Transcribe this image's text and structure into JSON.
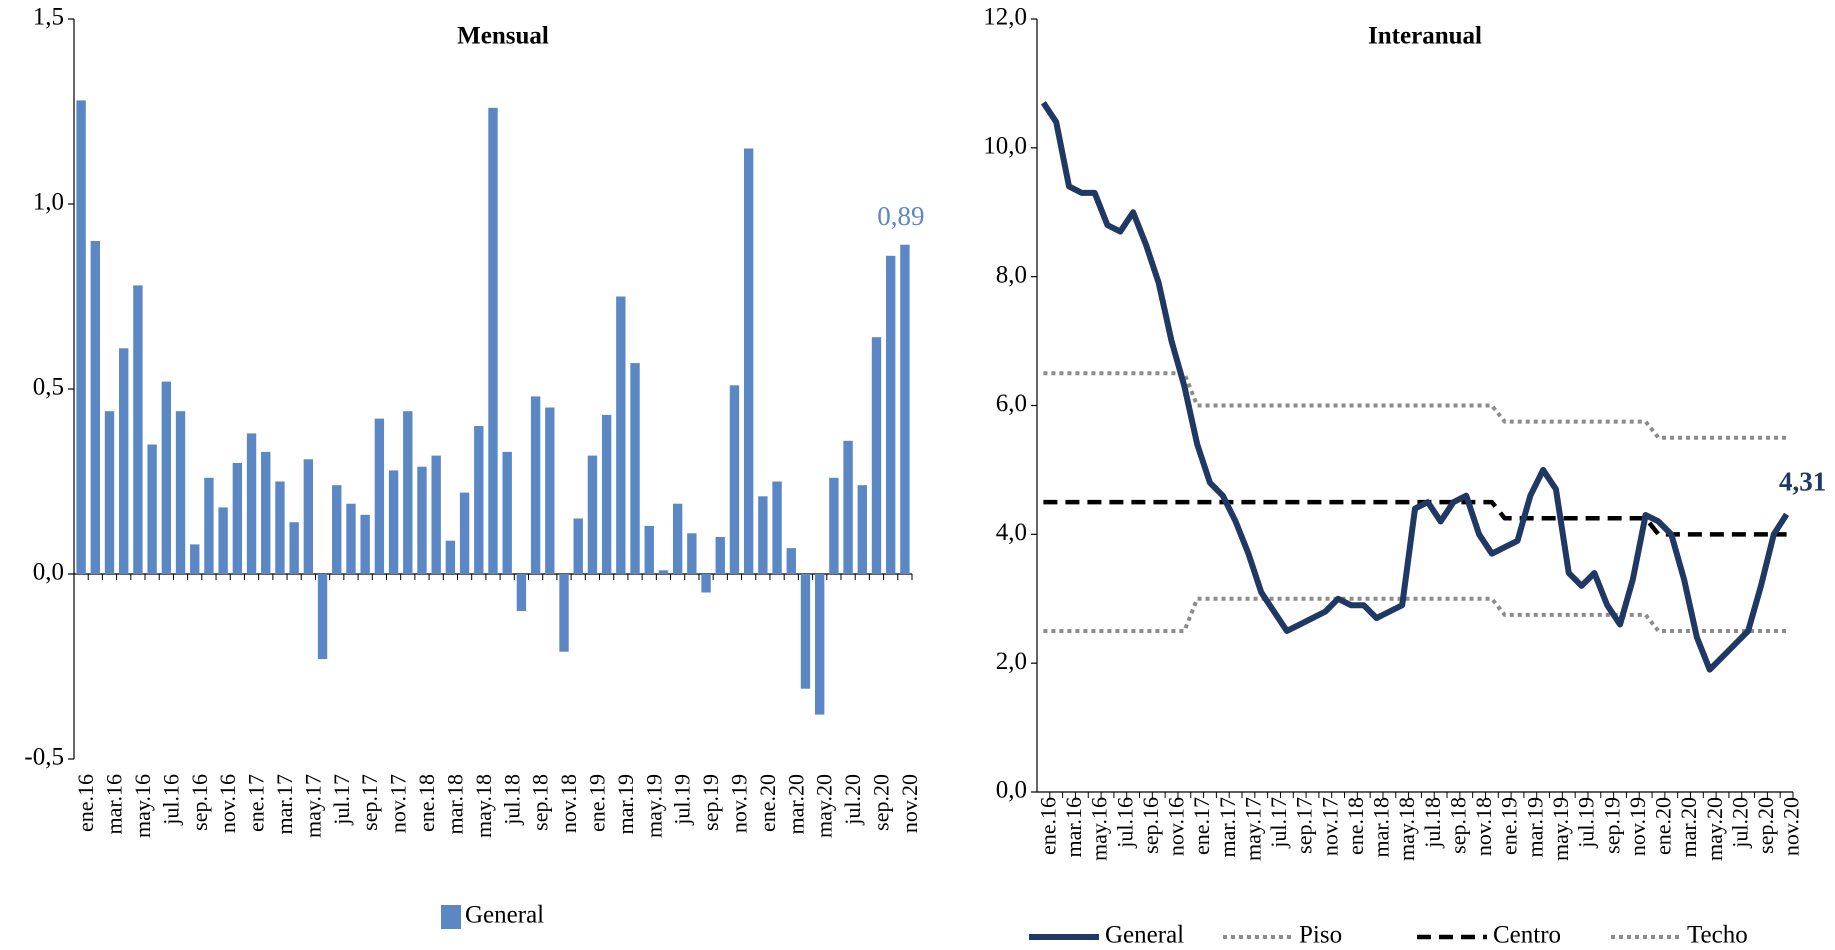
{
  "chart_data": [
    {
      "type": "bar",
      "title": "Mensual",
      "categories": [
        "ene.16",
        null,
        "mar.16",
        null,
        "may.16",
        null,
        "jul.16",
        null,
        "sep.16",
        null,
        "nov.16",
        null,
        "ene.17",
        null,
        "mar.17",
        null,
        "may.17",
        null,
        "jul.17",
        null,
        "sep.17",
        null,
        "nov.17",
        null,
        "ene.18",
        null,
        "mar.18",
        null,
        "may.18",
        null,
        "jul.18",
        null,
        "sep.18",
        null,
        "nov.18",
        null,
        "ene.19",
        null,
        "mar.19",
        null,
        "may.19",
        null,
        "jul.19",
        null,
        "sep.19",
        null,
        "nov.19",
        null,
        "ene.20",
        null,
        "mar.20",
        null,
        "may.20",
        null,
        "jul.20",
        null,
        "sep.20",
        null,
        "nov.20"
      ],
      "series": [
        {
          "name": "General",
          "color": "#5b87c5",
          "values": [
            1.28,
            0.9,
            0.44,
            0.61,
            0.78,
            0.35,
            0.52,
            0.44,
            0.08,
            0.26,
            0.18,
            0.3,
            0.38,
            0.33,
            0.25,
            0.14,
            0.31,
            -0.23,
            0.24,
            0.19,
            0.16,
            0.42,
            0.28,
            0.44,
            0.29,
            0.32,
            0.09,
            0.22,
            0.4,
            1.26,
            0.33,
            -0.1,
            0.48,
            0.45,
            -0.21,
            0.15,
            0.32,
            0.43,
            0.75,
            0.57,
            0.13,
            0.01,
            0.19,
            0.11,
            -0.05,
            0.1,
            0.51,
            1.15,
            0.21,
            0.25,
            0.07,
            -0.31,
            -0.38,
            0.26,
            0.36,
            0.24,
            0.64,
            0.86,
            0.89
          ],
          "value_labels": [
            null,
            null,
            null,
            null,
            null,
            null,
            null,
            null,
            null,
            null,
            null,
            null,
            null,
            null,
            null,
            null,
            null,
            null,
            null,
            null,
            null,
            null,
            null,
            null,
            null,
            null,
            null,
            null,
            null,
            null,
            null,
            null,
            null,
            null,
            null,
            null,
            null,
            null,
            null,
            null,
            null,
            null,
            null,
            null,
            null,
            null,
            null,
            null,
            null,
            null,
            null,
            null,
            null,
            null,
            null,
            null,
            null,
            null,
            "0,89"
          ]
        }
      ],
      "ylim": [
        -0.5,
        1.5
      ],
      "yticks": [
        {
          "value": -0.5,
          "label": "-0,5"
        },
        {
          "value": 0,
          "label": "0,0"
        },
        {
          "value": 0.5,
          "label": "0,5"
        },
        {
          "value": 1,
          "label": "1,0"
        },
        {
          "value": 1.5,
          "label": "1,5"
        }
      ]
    },
    {
      "type": "line",
      "title": "Interanual",
      "categories": [
        "ene.16",
        null,
        "mar.16",
        null,
        "may.16",
        null,
        "jul.16",
        null,
        "sep.16",
        null,
        "nov.16",
        null,
        "ene.17",
        null,
        "mar.17",
        null,
        "may.17",
        null,
        "jul.17",
        null,
        "sep.17",
        null,
        "nov.17",
        null,
        "ene.18",
        null,
        "mar.18",
        null,
        "may.18",
        null,
        "jul.18",
        null,
        "sep.18",
        null,
        "nov.18",
        null,
        "ene.19",
        null,
        "mar.19",
        null,
        "may.19",
        null,
        "jul.19",
        null,
        "sep.19",
        null,
        "nov.19",
        null,
        "ene.20",
        null,
        "mar.20",
        null,
        "may.20",
        null,
        "jul.20",
        null,
        "sep.20",
        null,
        "nov.20"
      ],
      "series": [
        {
          "name": "General",
          "color": "#1f3864",
          "style": "solid",
          "values": [
            10.7,
            10.4,
            9.4,
            9.3,
            9.3,
            8.8,
            8.7,
            9.0,
            8.5,
            7.9,
            7.0,
            6.3,
            5.4,
            4.8,
            4.6,
            4.2,
            3.7,
            3.1,
            2.8,
            2.5,
            2.6,
            2.7,
            2.8,
            3.0,
            2.9,
            2.9,
            2.7,
            2.8,
            2.9,
            4.4,
            4.5,
            4.2,
            4.5,
            4.6,
            4.0,
            3.7,
            3.8,
            3.9,
            4.6,
            5.0,
            4.7,
            3.4,
            3.2,
            3.4,
            2.9,
            2.6,
            3.3,
            4.3,
            4.2,
            4.0,
            3.3,
            2.4,
            1.9,
            2.1,
            2.3,
            2.5,
            3.2,
            4.0,
            4.31
          ],
          "value_labels": [
            null,
            null,
            null,
            null,
            null,
            null,
            null,
            null,
            null,
            null,
            null,
            null,
            null,
            null,
            null,
            null,
            null,
            null,
            null,
            null,
            null,
            null,
            null,
            null,
            null,
            null,
            null,
            null,
            null,
            null,
            null,
            null,
            null,
            null,
            null,
            null,
            null,
            null,
            null,
            null,
            null,
            null,
            null,
            null,
            null,
            null,
            null,
            null,
            null,
            null,
            null,
            null,
            null,
            null,
            null,
            null,
            null,
            null,
            "4,31"
          ]
        },
        {
          "name": "Piso",
          "color": "#8c8c8c",
          "style": "dotted",
          "values": [
            2.5,
            2.5,
            2.5,
            2.5,
            2.5,
            2.5,
            2.5,
            2.5,
            2.5,
            2.5,
            2.5,
            2.5,
            3.0,
            3.0,
            3.0,
            3.0,
            3.0,
            3.0,
            3.0,
            3.0,
            3.0,
            3.0,
            3.0,
            3.0,
            3.0,
            3.0,
            3.0,
            3.0,
            3.0,
            3.0,
            3.0,
            3.0,
            3.0,
            3.0,
            3.0,
            3.0,
            2.75,
            2.75,
            2.75,
            2.75,
            2.75,
            2.75,
            2.75,
            2.75,
            2.75,
            2.75,
            2.75,
            2.75,
            2.5,
            2.5,
            2.5,
            2.5,
            2.5,
            2.5,
            2.5,
            2.5,
            2.5,
            2.5,
            2.5
          ]
        },
        {
          "name": "Centro",
          "color": "#000000",
          "style": "dashed",
          "values": [
            4.5,
            4.5,
            4.5,
            4.5,
            4.5,
            4.5,
            4.5,
            4.5,
            4.5,
            4.5,
            4.5,
            4.5,
            4.5,
            4.5,
            4.5,
            4.5,
            4.5,
            4.5,
            4.5,
            4.5,
            4.5,
            4.5,
            4.5,
            4.5,
            4.5,
            4.5,
            4.5,
            4.5,
            4.5,
            4.5,
            4.5,
            4.5,
            4.5,
            4.5,
            4.5,
            4.5,
            4.25,
            4.25,
            4.25,
            4.25,
            4.25,
            4.25,
            4.25,
            4.25,
            4.25,
            4.25,
            4.25,
            4.25,
            4.0,
            4.0,
            4.0,
            4.0,
            4.0,
            4.0,
            4.0,
            4.0,
            4.0,
            4.0,
            4.0
          ]
        },
        {
          "name": "Techo",
          "color": "#8c8c8c",
          "style": "dotted",
          "values": [
            6.5,
            6.5,
            6.5,
            6.5,
            6.5,
            6.5,
            6.5,
            6.5,
            6.5,
            6.5,
            6.5,
            6.5,
            6.0,
            6.0,
            6.0,
            6.0,
            6.0,
            6.0,
            6.0,
            6.0,
            6.0,
            6.0,
            6.0,
            6.0,
            6.0,
            6.0,
            6.0,
            6.0,
            6.0,
            6.0,
            6.0,
            6.0,
            6.0,
            6.0,
            6.0,
            6.0,
            5.75,
            5.75,
            5.75,
            5.75,
            5.75,
            5.75,
            5.75,
            5.75,
            5.75,
            5.75,
            5.75,
            5.75,
            5.5,
            5.5,
            5.5,
            5.5,
            5.5,
            5.5,
            5.5,
            5.5,
            5.5,
            5.5,
            5.5
          ]
        }
      ],
      "ylim": [
        0,
        12
      ],
      "yticks": [
        {
          "value": 0,
          "label": "0,0"
        },
        {
          "value": 2,
          "label": "2,0"
        },
        {
          "value": 4,
          "label": "4,0"
        },
        {
          "value": 6,
          "label": "6,0"
        },
        {
          "value": 8,
          "label": "8,0"
        },
        {
          "value": 10,
          "label": "10,0"
        },
        {
          "value": 12,
          "label": "12,0"
        }
      ]
    }
  ]
}
